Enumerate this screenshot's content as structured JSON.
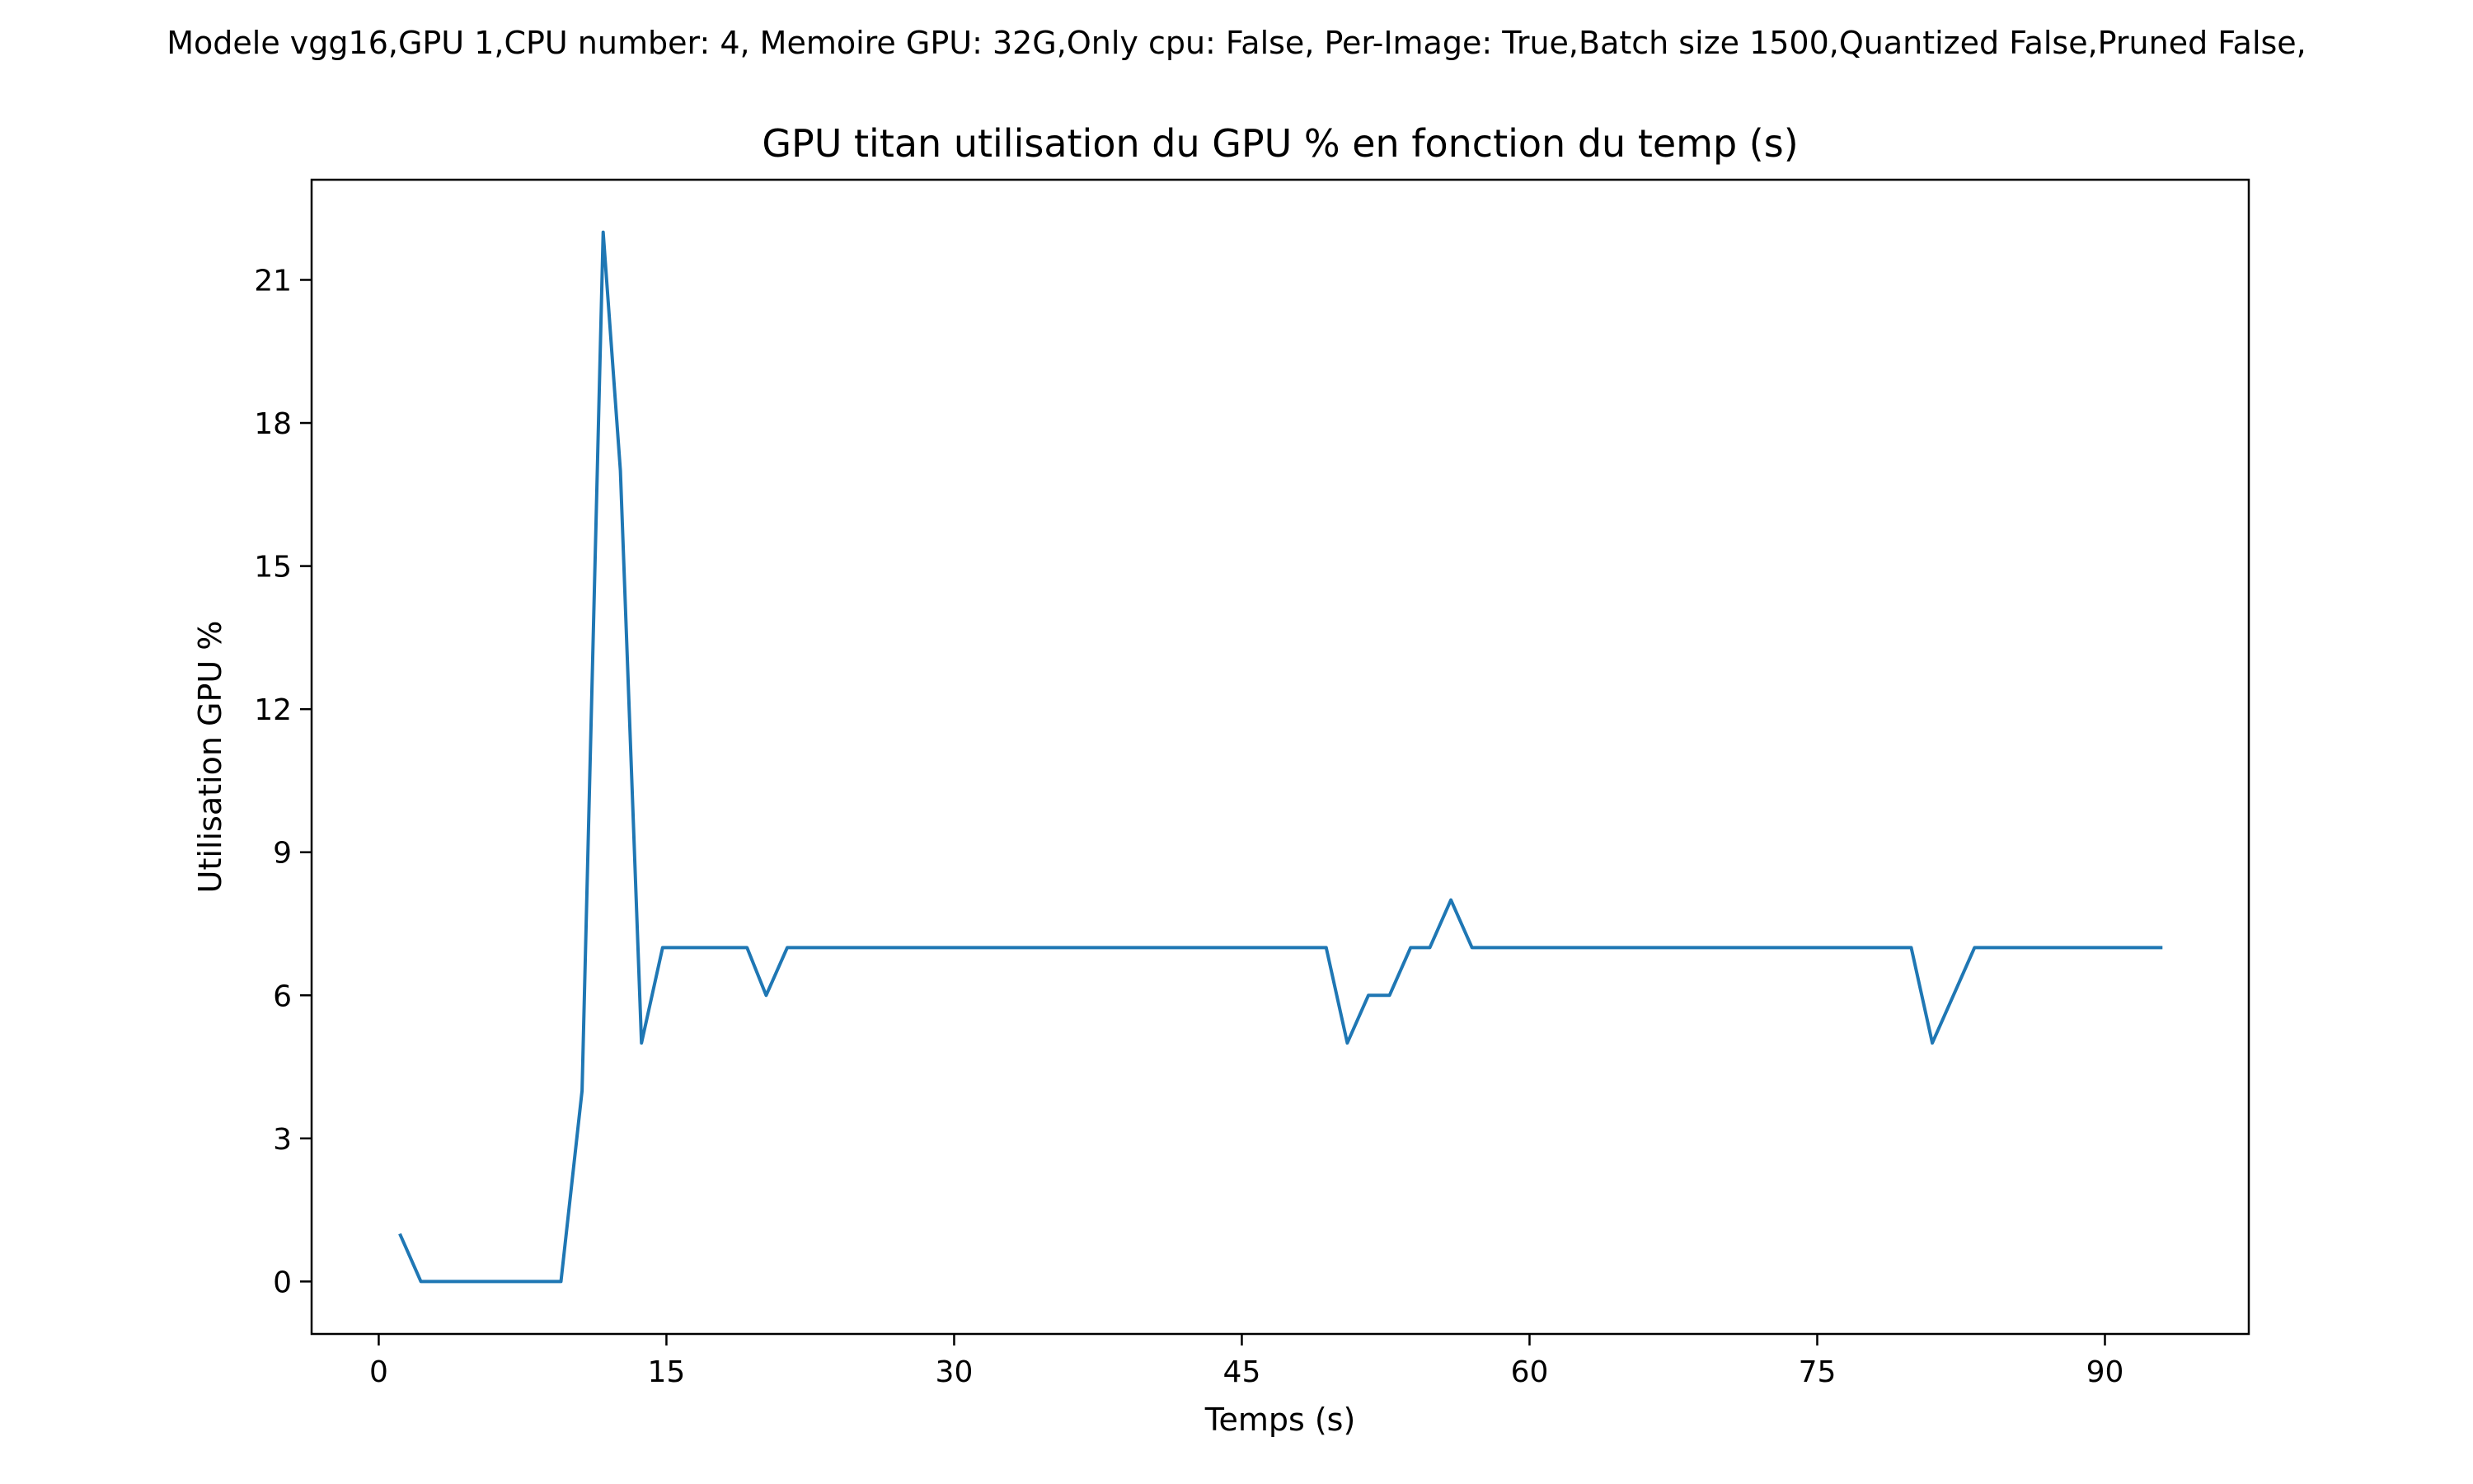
{
  "suptitle": "Modele vgg16,GPU 1,CPU number: 4, Memoire GPU: 32G,Only cpu: False, Per-Image: True,Batch size 1500,Quantized False,Pruned False,",
  "chart_data": {
    "type": "line",
    "title": "GPU titan utilisation du GPU % en fonction du temp (s)",
    "xlabel": "Temps (s)",
    "ylabel": "Utilisation GPU %",
    "xlim": [
      -3.5,
      97.5
    ],
    "ylim": [
      -1.1,
      23.1
    ],
    "xticks": [
      0,
      15,
      30,
      45,
      60,
      75,
      90
    ],
    "yticks": [
      0,
      3,
      6,
      9,
      12,
      15,
      18,
      21
    ],
    "grid": false,
    "line_color": "#1f77b4",
    "series": [
      {
        "x": [
          1.1,
          2.2,
          3.3,
          4.4,
          5.5,
          6.6,
          7.7,
          8.8,
          9.5,
          10.6,
          11.7,
          12.6,
          13.7,
          14.8,
          15.9,
          17.0,
          18.1,
          19.2,
          20.2,
          21.3,
          22.4,
          23.5,
          24.6,
          25.7,
          26.8,
          27.9,
          29.0,
          30.1,
          31.2,
          32.3,
          33.4,
          34.5,
          35.6,
          36.7,
          37.8,
          38.9,
          40.0,
          41.1,
          42.2,
          43.3,
          44.4,
          45.5,
          46.6,
          47.7,
          48.8,
          49.4,
          50.5,
          51.6,
          52.7,
          53.8,
          54.8,
          55.9,
          57.0,
          58.1,
          59.2,
          60.3,
          61.4,
          62.5,
          63.6,
          64.7,
          65.8,
          66.9,
          68.0,
          69.1,
          70.2,
          71.3,
          72.4,
          73.5,
          74.6,
          75.7,
          76.8,
          77.9,
          79.0,
          79.9,
          81.0,
          82.1,
          83.2,
          84.3,
          85.4,
          86.5,
          87.6,
          88.7,
          89.8,
          90.9,
          92.0,
          93.0
        ],
        "y": [
          1,
          0,
          0,
          0,
          0,
          0,
          0,
          0,
          0,
          4,
          22,
          17,
          5,
          7,
          7,
          7,
          7,
          7,
          6,
          7,
          7,
          7,
          7,
          7,
          7,
          7,
          7,
          7,
          7,
          7,
          7,
          7,
          7,
          7,
          7,
          7,
          7,
          7,
          7,
          7,
          7,
          7,
          7,
          7,
          7,
          7,
          5,
          6,
          6,
          7,
          7,
          8,
          7,
          7,
          7,
          7,
          7,
          7,
          7,
          7,
          7,
          7,
          7,
          7,
          7,
          7,
          7,
          7,
          7,
          7,
          7,
          7,
          7,
          7,
          5,
          6,
          7,
          7,
          7,
          7,
          7,
          7,
          7,
          7,
          7,
          7
        ]
      }
    ]
  }
}
